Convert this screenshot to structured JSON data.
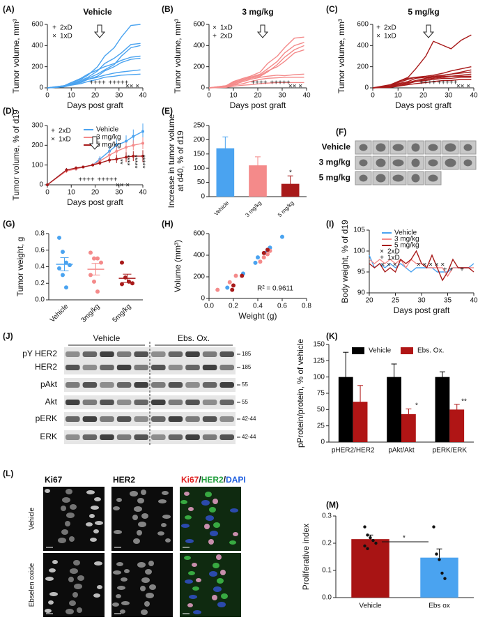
{
  "chart_data": [
    {
      "type": "line",
      "label": "(A)",
      "title": "Vehicle",
      "xlabel": "Days post graft",
      "ylabel": "Tumor volume, mm³",
      "color": "#4aa3f0",
      "x": [
        0,
        7,
        10,
        14,
        17,
        21,
        24,
        28,
        31,
        35,
        39
      ],
      "xlim": [
        0,
        40
      ],
      "xticks": [
        0,
        10,
        20,
        30,
        40
      ],
      "ylim": [
        0,
        600
      ],
      "yticks": [
        0,
        200,
        400,
        600
      ],
      "legend": [
        {
          "symbol": "+",
          "label": "2xD"
        },
        {
          "symbol": "×",
          "label": "1xD"
        }
      ],
      "annotations": [
        "++++",
        "+++++",
        "×× ×"
      ],
      "series": [
        {
          "values": [
            0,
            20,
            50,
            80,
            120,
            200,
            300,
            380,
            480,
            590,
            600
          ]
        },
        {
          "values": [
            0,
            15,
            40,
            70,
            100,
            160,
            230,
            280,
            330,
            410,
            420
          ]
        },
        {
          "values": [
            0,
            10,
            30,
            60,
            90,
            130,
            170,
            220,
            300,
            380,
            400
          ]
        },
        {
          "values": [
            0,
            20,
            50,
            90,
            130,
            170,
            200,
            230,
            260,
            290,
            300
          ]
        },
        {
          "values": [
            0,
            10,
            30,
            50,
            80,
            110,
            160,
            200,
            240,
            270,
            280
          ]
        },
        {
          "values": [
            0,
            15,
            35,
            60,
            80,
            100,
            120,
            140,
            150,
            160,
            170
          ]
        },
        {
          "values": [
            0,
            10,
            25,
            40,
            60,
            80,
            100,
            110,
            120,
            125,
            130
          ]
        }
      ]
    },
    {
      "type": "line",
      "label": "(B)",
      "title": "3 mg/kg",
      "xlabel": "Days post graft",
      "ylabel": "Tumor volume, mm³",
      "color": "#f48a8a",
      "x": [
        0,
        7,
        10,
        14,
        17,
        21,
        24,
        28,
        31,
        35,
        39
      ],
      "xlim": [
        0,
        40
      ],
      "xticks": [
        0,
        10,
        20,
        30,
        40
      ],
      "ylim": [
        0,
        600
      ],
      "yticks": [
        0,
        200,
        400,
        600
      ],
      "legend": [
        {
          "symbol": "×",
          "label": "1xD"
        },
        {
          "symbol": "+",
          "label": "2xD"
        }
      ],
      "annotations": [
        "++++",
        "+++++",
        "×× ×"
      ],
      "series": [
        {
          "values": [
            0,
            20,
            60,
            90,
            110,
            150,
            230,
            300,
            380,
            470,
            480
          ]
        },
        {
          "values": [
            0,
            15,
            50,
            80,
            100,
            130,
            180,
            250,
            330,
            400,
            430
          ]
        },
        {
          "values": [
            0,
            10,
            40,
            70,
            90,
            110,
            150,
            220,
            290,
            360,
            400
          ]
        },
        {
          "values": [
            0,
            20,
            50,
            80,
            100,
            120,
            160,
            200,
            250,
            330,
            360
          ]
        },
        {
          "values": [
            0,
            10,
            30,
            60,
            80,
            100,
            110,
            120,
            115,
            125,
            130
          ]
        },
        {
          "values": [
            0,
            10,
            25,
            40,
            60,
            80,
            90,
            95,
            100,
            100,
            100
          ]
        },
        {
          "values": [
            0,
            5,
            15,
            25,
            30,
            40,
            45,
            50,
            50,
            50,
            50
          ]
        }
      ]
    },
    {
      "type": "line",
      "label": "(C)",
      "title": "5 mg/kg",
      "xlabel": "Days post graft",
      "ylabel": "Tumor volume, mm³",
      "color": "#a81a1a",
      "x": [
        0,
        7,
        10,
        14,
        17,
        21,
        24,
        28,
        31,
        35,
        39
      ],
      "xlim": [
        0,
        40
      ],
      "xticks": [
        0,
        10,
        20,
        30,
        40
      ],
      "ylim": [
        0,
        600
      ],
      "yticks": [
        0,
        200,
        400,
        600
      ],
      "legend": [
        {
          "symbol": "+",
          "label": "2xD"
        },
        {
          "symbol": "×",
          "label": "1xD"
        }
      ],
      "annotations": [
        "++++",
        "+++++",
        "×× ×"
      ],
      "series": [
        {
          "values": [
            0,
            30,
            60,
            100,
            180,
            300,
            440,
            400,
            370,
            450,
            500
          ]
        },
        {
          "values": [
            0,
            20,
            50,
            80,
            100,
            110,
            120,
            140,
            160,
            180,
            200
          ]
        },
        {
          "values": [
            0,
            20,
            60,
            90,
            100,
            100,
            110,
            120,
            130,
            150,
            170
          ]
        },
        {
          "values": [
            0,
            15,
            40,
            60,
            90,
            100,
            100,
            120,
            130,
            140,
            150
          ]
        },
        {
          "values": [
            0,
            10,
            30,
            50,
            70,
            90,
            100,
            110,
            110,
            120,
            130
          ]
        },
        {
          "values": [
            0,
            10,
            30,
            50,
            60,
            80,
            90,
            100,
            110,
            110,
            110
          ]
        },
        {
          "values": [
            0,
            10,
            20,
            40,
            60,
            70,
            80,
            90,
            90,
            100,
            100
          ]
        },
        {
          "values": [
            0,
            5,
            15,
            30,
            40,
            50,
            60,
            70,
            70,
            80,
            80
          ]
        }
      ]
    },
    {
      "type": "line",
      "label": "(D)",
      "xlabel": "Days post graft",
      "ylabel": "Tumor volume, % of d19",
      "markers": true,
      "x": [
        0,
        8,
        12,
        15,
        19,
        22,
        26,
        29,
        33,
        36,
        40
      ],
      "xlim": [
        0,
        40
      ],
      "xticks": [
        0,
        10,
        20,
        30,
        40
      ],
      "ylim": [
        0,
        300
      ],
      "yticks": [
        0,
        100,
        200,
        300
      ],
      "legend": [
        {
          "symbol": "+",
          "label": "2xD"
        },
        {
          "symbol": "×",
          "label": "1xD"
        }
      ],
      "annotations": [
        "++++",
        "+++++",
        "×× ×",
        {
          "text": "**",
          "color": "#c62020"
        },
        {
          "text": "****",
          "color": "#c62020"
        },
        {
          "text": "*****",
          "color": "#c62020"
        },
        {
          "text": "*****",
          "color": "#c62020"
        }
      ],
      "series": [
        {
          "name": "Vehicle",
          "color": "#4aa3f0",
          "values": [
            0,
            75,
            80,
            90,
            100,
            130,
            170,
            200,
            220,
            245,
            270
          ],
          "errors": [
            0,
            10,
            8,
            5,
            0,
            15,
            25,
            30,
            30,
            35,
            40
          ]
        },
        {
          "name": "3 mg/kg",
          "color": "#f48a8a",
          "values": [
            0,
            70,
            80,
            90,
            100,
            120,
            150,
            170,
            190,
            200,
            210
          ],
          "errors": [
            0,
            10,
            8,
            5,
            0,
            15,
            20,
            25,
            25,
            25,
            30
          ]
        },
        {
          "name": "5 mg/kg",
          "color": "#a81a1a",
          "values": [
            0,
            75,
            85,
            90,
            100,
            110,
            125,
            130,
            140,
            145,
            145
          ],
          "errors": [
            0,
            10,
            8,
            5,
            0,
            10,
            15,
            20,
            25,
            25,
            30
          ]
        }
      ]
    },
    {
      "type": "bar",
      "label": "(E)",
      "ylabel": [
        "Increase in tumor volume",
        "at d40, % of d19"
      ],
      "categories": [
        "Vehicle",
        "3 mg/kg",
        "5 mg/kg"
      ],
      "values": [
        170,
        110,
        45
      ],
      "errors": [
        40,
        30,
        28
      ],
      "colors": [
        "#4aa3f0",
        "#f48a8a",
        "#a81a1a"
      ],
      "ylim": [
        0,
        250
      ],
      "yticks": [
        0,
        50,
        100,
        150,
        200,
        250
      ],
      "annotations": [
        {
          "text": "*",
          "color": "#c62020"
        }
      ]
    },
    {
      "type": "photo",
      "label": "(F)",
      "groups": [
        {
          "label": "Vehicle",
          "color": "#4aa3f0",
          "count": 7
        },
        {
          "label": "3 mg/kg",
          "color": "#f48a8a",
          "count": 7
        },
        {
          "label": "5 mg/kg",
          "color": "#a81a1a",
          "count": 5
        }
      ]
    },
    {
      "type": "dot",
      "label": "(G)",
      "ylabel": "Tumor weight, g",
      "categories": [
        "Vehicle",
        "3mg/kg",
        "5mg/kg"
      ],
      "colors": [
        "#4aa3f0",
        "#f48a8a",
        "#a81a1a"
      ],
      "points": [
        [
          0.75,
          0.58,
          0.45,
          0.42,
          0.38,
          0.3,
          0.15
        ],
        [
          0.57,
          0.5,
          0.5,
          0.45,
          0.3,
          0.22,
          0.1
        ],
        [
          0.45,
          0.27,
          0.22,
          0.2,
          0.19
        ]
      ],
      "means": [
        0.43,
        0.37,
        0.26
      ],
      "sems": [
        0.08,
        0.07,
        0.05
      ],
      "ylim": [
        0,
        0.8
      ],
      "yticks": [
        {
          "value": 0,
          "label": "0.0"
        },
        0.2,
        0.4,
        0.6,
        0.8
      ]
    },
    {
      "type": "scatter",
      "label": "(H)",
      "xlabel": "Weight (g)",
      "ylabel": "Volume (mm³)",
      "annotations": [
        "R² = 0.9611"
      ],
      "xlim": [
        0,
        0.8
      ],
      "xticks": [
        {
          "value": 0,
          "label": "0.0"
        },
        0.2,
        0.4,
        0.6,
        0.8
      ],
      "ylim": [
        0,
        600
      ],
      "yticks": [
        0,
        200,
        400,
        600
      ],
      "series": [
        {
          "color": "#4aa3f0",
          "x": [
            0.6,
            0.5,
            0.46,
            0.4,
            0.38,
            0.28,
            0.15
          ],
          "y": [
            570,
            470,
            420,
            380,
            330,
            230,
            100
          ]
        },
        {
          "color": "#f48a8a",
          "x": [
            0.5,
            0.48,
            0.45,
            0.42,
            0.22,
            0.17,
            0.07
          ],
          "y": [
            440,
            410,
            380,
            340,
            210,
            150,
            80
          ]
        },
        {
          "color": "#a81a1a",
          "x": [
            0.48,
            0.45,
            0.27,
            0.2,
            0.19
          ],
          "y": [
            450,
            420,
            210,
            120,
            80
          ]
        }
      ]
    },
    {
      "type": "line",
      "label": "(I)",
      "xlabel": "Days post graft",
      "ylabel": "Body weight, % of d19",
      "x": [
        20,
        21,
        22,
        23,
        24,
        25,
        26,
        27,
        28,
        29,
        30,
        31,
        32,
        33,
        34,
        35,
        36,
        37,
        38,
        39,
        40
      ],
      "xlim": [
        20,
        40
      ],
      "xticks": [
        20,
        25,
        30,
        35,
        40
      ],
      "ylim": [
        90,
        105
      ],
      "yticks": [
        90,
        95,
        100,
        105
      ],
      "legend": [
        {
          "symbol": "×",
          "label": "2xD"
        },
        {
          "symbol": "+",
          "label": "1xD"
        }
      ],
      "annotations": [
        "× × ×",
        "× × × × ×",
        "+ +",
        "+"
      ],
      "series": [
        {
          "name": "Vehicle",
          "color": "#4aa3f0",
          "values": [
            99,
            96,
            97,
            96,
            97,
            96,
            97,
            96,
            95,
            96,
            96,
            96,
            96,
            95,
            95,
            95,
            96,
            96,
            96,
            96,
            97
          ]
        },
        {
          "name": "3 mg/kg",
          "color": "#f48a8a",
          "values": [
            98,
            97,
            98,
            97,
            98,
            97,
            98,
            96,
            98,
            97,
            97,
            96,
            96,
            96,
            96,
            94,
            96,
            96,
            96,
            96,
            96
          ]
        },
        {
          "name": "5 mg/kg",
          "color": "#a81a1a",
          "values": [
            97,
            96,
            97,
            95,
            96,
            95,
            98,
            97,
            98,
            100,
            97,
            96,
            99,
            96,
            93,
            95,
            98,
            96,
            96,
            96,
            95
          ]
        }
      ]
    },
    {
      "type": "blot",
      "label": "(J)",
      "groups": [
        "Vehicle",
        "Ebs. Ox."
      ],
      "rows": [
        {
          "label": "pY HER2",
          "size": "185"
        },
        {
          "label": "HER2",
          "size": "185"
        },
        {
          "label": "pAkt",
          "size": "55"
        },
        {
          "label": "Akt",
          "size": "55"
        },
        {
          "label": "pERK",
          "size": "42-44"
        },
        {
          "label": "ERK",
          "size": "42-44"
        }
      ]
    },
    {
      "type": "bar",
      "label": "(K)",
      "ylabel": "pProtein/protein, % of vehicle",
      "categories": [
        "pHER2/HER2",
        "pAkt/Akt",
        "pERK/ERK"
      ],
      "ylim": [
        0,
        150
      ],
      "yticks": [
        0,
        25,
        50,
        75,
        100,
        125,
        150
      ],
      "annotations": [
        "*",
        "**"
      ],
      "series": [
        {
          "name": "Vehicle",
          "color": "#000000",
          "values": [
            100,
            100,
            100
          ],
          "errors": [
            38,
            20,
            8
          ]
        },
        {
          "name": "Ebs. Ox.",
          "color": "#b01515",
          "values": [
            62,
            43,
            50
          ],
          "errors": [
            25,
            8,
            8
          ]
        }
      ]
    },
    {
      "type": "micrograph",
      "label": "(L)",
      "columns": [
        "Ki67",
        "HER2"
      ],
      "merge": [
        {
          "text": "Ki67",
          "color": "#e02020"
        },
        {
          "text": "/",
          "color": "#111111"
        },
        {
          "text": "HER2",
          "color": "#1e9e3a"
        },
        {
          "text": "/",
          "color": "#111111"
        },
        {
          "text": "DAPI",
          "color": "#2060e0"
        }
      ],
      "rows": [
        "Vehicle",
        "Ebselen oxide"
      ]
    },
    {
      "type": "bar",
      "label": "(M)",
      "ylabel": "Proliferative index",
      "categories": [
        "Vehicle",
        "Ebs ox"
      ],
      "values": [
        0.215,
        0.147
      ],
      "errors": [
        0.015,
        0.032
      ],
      "colors": [
        "#a81414",
        "#4aa3f0"
      ],
      "points": [
        [
          0.26,
          0.23,
          0.22,
          0.21,
          0.2,
          0.19,
          0.18
        ],
        [
          0.26,
          0.16,
          0.14,
          0.09,
          0.07
        ]
      ],
      "ylim": [
        0,
        0.3
      ],
      "yticks": [
        {
          "value": 0,
          "label": "0.0"
        },
        0.1,
        0.2,
        0.3
      ],
      "annotations": [
        "*"
      ]
    }
  ]
}
